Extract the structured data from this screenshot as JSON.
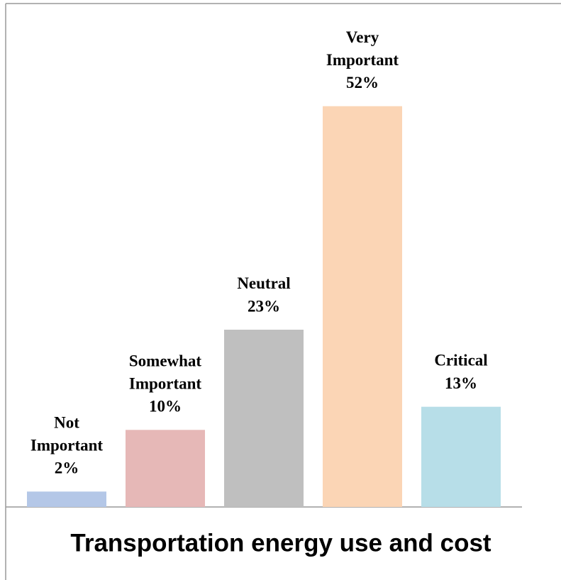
{
  "chart_data": {
    "type": "bar",
    "title": "Transportation energy use and cost",
    "categories": [
      "Not Important",
      "Somewhat Important",
      "Neutral",
      "Very Important",
      "Critical"
    ],
    "values": [
      2,
      10,
      23,
      52,
      13
    ],
    "value_labels": [
      "2%",
      "10%",
      "23%",
      "52%",
      "13%"
    ],
    "colors": [
      "#b4c7e7",
      "#e6b8b7",
      "#bfbfbf",
      "#fbd5b5",
      "#b7dee8"
    ]
  }
}
